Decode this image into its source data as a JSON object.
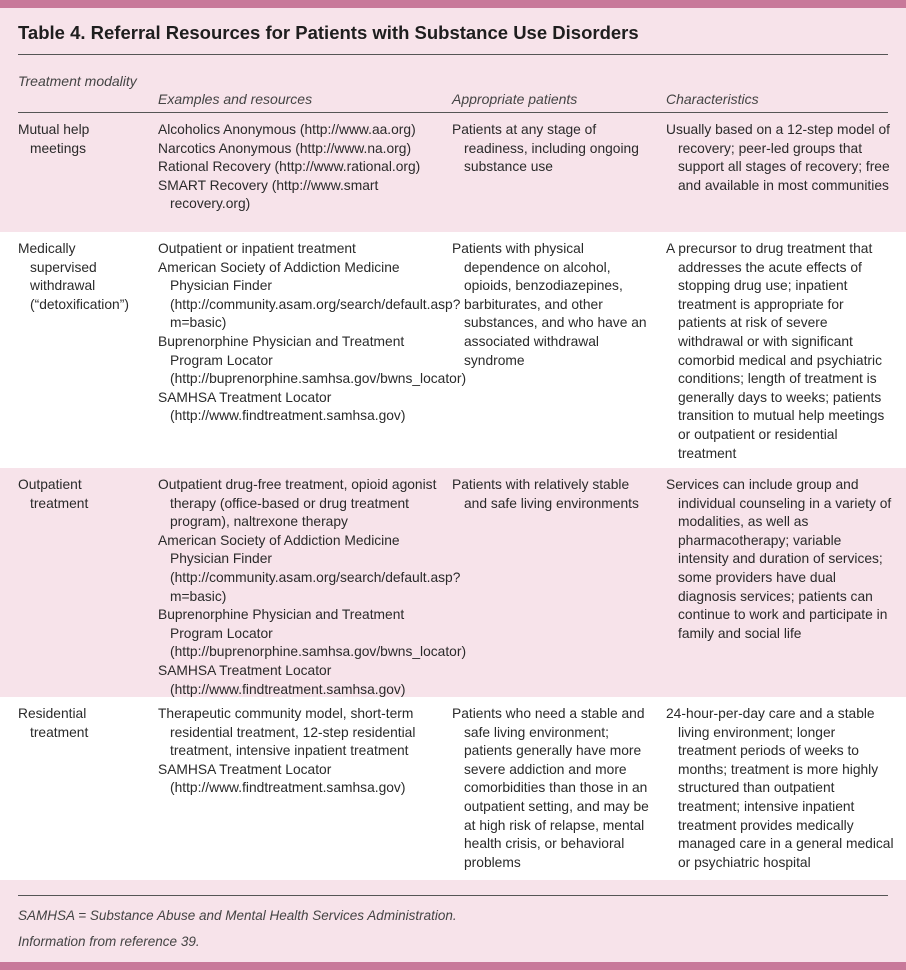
{
  "title": "Table 4. Referral Resources for Patients with Substance Use Disorders",
  "headers": [
    "Treatment modality",
    "Examples and resources",
    "Appropriate patients",
    "Characteristics"
  ],
  "rows": [
    {
      "modality": "Mutual help meetings",
      "examples": [
        "Alcoholics Anonymous (http://www.aa.org)",
        "Narcotics Anonymous (http://www.na.org)",
        "Rational Recovery (http://www.rational.org)",
        "SMART Recovery (http://www.smart recovery.org)"
      ],
      "patients": "Patients at any stage of readiness, including ongoing substance use",
      "characteristics": "Usually based on a 12-step model of recovery; peer-led groups that support all stages of recovery; free and available in most communities"
    },
    {
      "modality": "Medically supervised withdrawal (“detoxification”)",
      "examples": [
        "Outpatient or inpatient treatment",
        "American Society of Addiction Medicine Physician Finder (http://community.asam.org/search/default.asp?m=basic)",
        "Buprenorphine Physician and Treatment Program Locator (http://buprenorphine.samhsa.gov/bwns_locator)",
        "SAMHSA Treatment Locator (http://www.findtreatment.samhsa.gov)"
      ],
      "patients": "Patients with physical dependence on alcohol, opioids, benzodiazepines, barbiturates, and other substances, and who have an associated withdrawal syndrome",
      "characteristics": "A precursor to drug treatment that addresses the acute effects of stopping drug use; inpatient treatment is appropriate for patients at risk of severe withdrawal or with significant comorbid medical and psychiatric conditions; length of treatment is generally days to weeks; patients transition to mutual help meetings or outpatient or residential treatment"
    },
    {
      "modality": "Outpatient treatment",
      "examples": [
        "Outpatient drug-free treatment, opioid agonist therapy (office-based or drug treatment program), naltrexone therapy",
        "American Society of Addiction Medicine Physician Finder (http://community.asam.org/search/default.asp?m=basic)",
        "Buprenorphine Physician and Treatment Program Locator (http://buprenorphine.samhsa.gov/bwns_locator)",
        "SAMHSA Treatment Locator (http://www.findtreatment.samhsa.gov)"
      ],
      "patients": "Patients with relatively stable and safe living environments",
      "characteristics": "Services can include group and individual counseling in a variety of modalities, as well as pharmacotherapy; variable intensity and duration of services; some providers have dual diagnosis services; patients can continue to work and participate in family and social life"
    },
    {
      "modality": "Residential treatment",
      "examples": [
        "Therapeutic community model, short-term residential treatment, 12-step residential treatment, intensive inpatient treatment",
        "SAMHSA Treatment Locator (http://www.findtreatment.samhsa.gov)"
      ],
      "patients": "Patients who need a stable and safe living environment; patients generally have more severe addiction and more comorbidities than those in an outpatient setting, and may be at high risk of relapse, mental health crisis, or behavioral problems",
      "characteristics": "24-hour-per-day care and a stable living environment; longer treatment periods of weeks to months; treatment is more highly structured than outpatient treatment; intensive inpatient treatment provides medically managed care in a general medical or psychiatric hospital"
    }
  ],
  "notes": [
    "SAMHSA = Substance Abuse and Mental Health Services Administration.",
    "Information from reference 39."
  ],
  "colors": {
    "accent_bar": "#c8799a",
    "background": "#f7e3ea"
  }
}
